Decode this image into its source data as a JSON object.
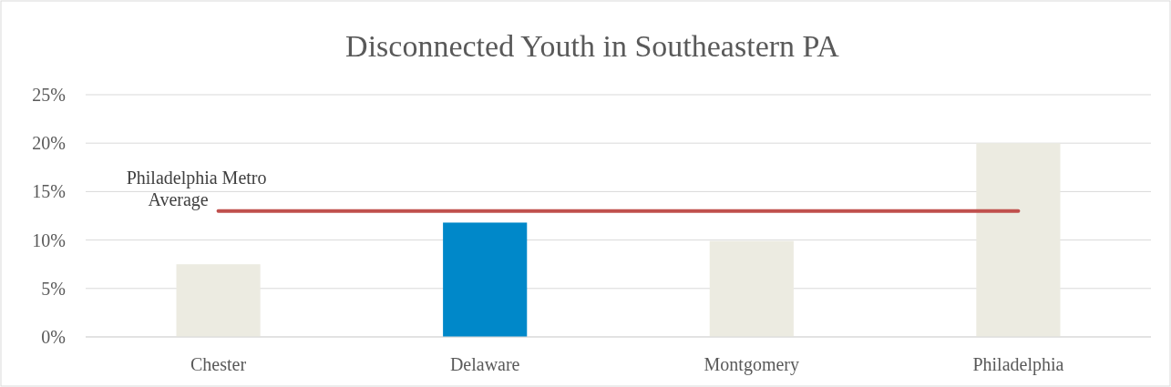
{
  "chart_data": {
    "type": "bar",
    "title": "Disconnected Youth in Southeastern PA",
    "categories": [
      "Chester",
      "Delaware",
      "Montgomery",
      "Philadelphia"
    ],
    "series": [
      {
        "colors": [
          "#ecebe1",
          "#0088c9",
          "#ecebe1",
          "#ecebe1"
        ],
        "values": [
          7.5,
          11.8,
          9.9,
          20.0
        ]
      },
      {
        "type": "line",
        "name": "Philadelphia Metro Average",
        "color": "#c0504d",
        "values": [
          13.0,
          13.0,
          13.0,
          13.0
        ]
      }
    ],
    "ylim": [
      0,
      25
    ],
    "yticks": [
      {
        "value": 0,
        "label": "0%"
      },
      {
        "value": 5,
        "label": "5%"
      },
      {
        "value": 10,
        "label": "10%"
      },
      {
        "value": 15,
        "label": "15%"
      },
      {
        "value": 20,
        "label": "20%"
      },
      {
        "value": 25,
        "label": "25%"
      }
    ],
    "grid": "y"
  }
}
